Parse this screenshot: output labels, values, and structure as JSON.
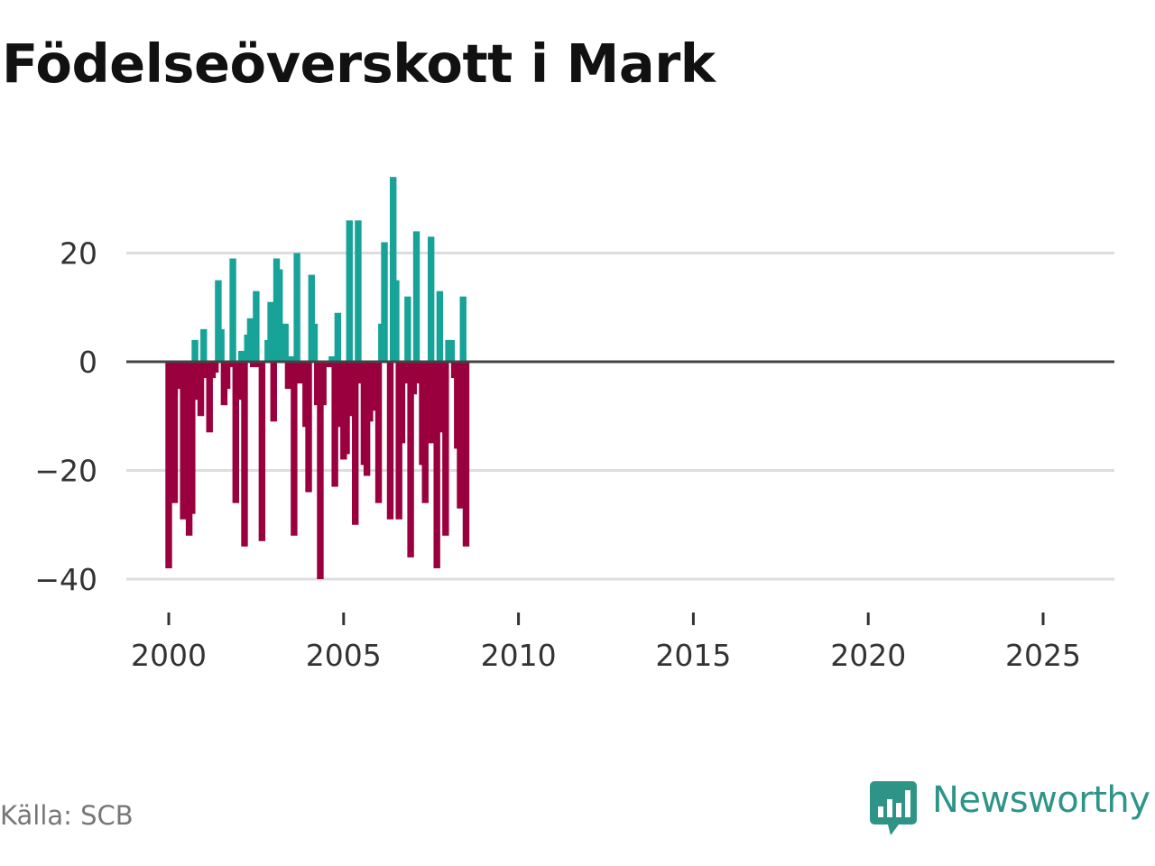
{
  "header": {
    "title": "Födelseöverskott i Mark"
  },
  "footer": {
    "source": "Källa: SCB",
    "brand": "Newsworthy"
  },
  "colors": {
    "positive": "#17a398",
    "negative": "#99003d",
    "grid": "#dddddd",
    "zero_line": "#444444",
    "brand": "#2e9488"
  },
  "icons": {
    "brand_logo": "bar-chart-speech-bubble-icon"
  },
  "chart_data": {
    "type": "bar",
    "title": "Födelseöverskott i Mark",
    "xlabel": "",
    "ylabel": "",
    "frequency": "monthly (one bar per month)",
    "x_start": 2000.0,
    "x_step": 0.0833333,
    "xlim": [
      1999.25,
      2026.8
    ],
    "ylim": [
      -42,
      38
    ],
    "y_ticks": [
      20,
      0,
      -20,
      -40
    ],
    "y_tick_labels": [
      "20",
      "0",
      "−20",
      "−40"
    ],
    "x_ticks": [
      2000,
      2005,
      2010,
      2015,
      2020,
      2025
    ],
    "x_tick_labels": [
      "2000",
      "2005",
      "2010",
      "2015",
      "2020",
      "2025"
    ],
    "grid": true,
    "values": [
      -38,
      -17,
      -26,
      0,
      -5,
      -29,
      -20,
      -32,
      -28,
      4,
      -7,
      -10,
      6,
      -3,
      -13,
      -3,
      -2,
      15,
      6,
      -8,
      -5,
      -1,
      19,
      -26,
      -7,
      2,
      -34,
      5,
      8,
      -1,
      13,
      -1,
      -33,
      0,
      4,
      11,
      -11,
      19,
      17,
      2,
      7,
      -5,
      1,
      -32,
      20,
      -4,
      -2,
      -12,
      -24,
      16,
      7,
      -8,
      -40,
      -8,
      -1,
      -1,
      1,
      -23,
      9,
      -12,
      -18,
      -17,
      26,
      -10,
      -30,
      26,
      -4,
      -19,
      -21,
      -11,
      -9,
      -7,
      -26,
      7,
      22,
      0,
      -29,
      34,
      15,
      -29,
      -15,
      -4,
      12,
      -36,
      -6,
      24,
      -4,
      -19,
      -26,
      -15,
      23,
      -15,
      -38,
      13,
      -13,
      -32,
      4,
      4,
      -3,
      -16,
      -27,
      12,
      -34
    ]
  }
}
